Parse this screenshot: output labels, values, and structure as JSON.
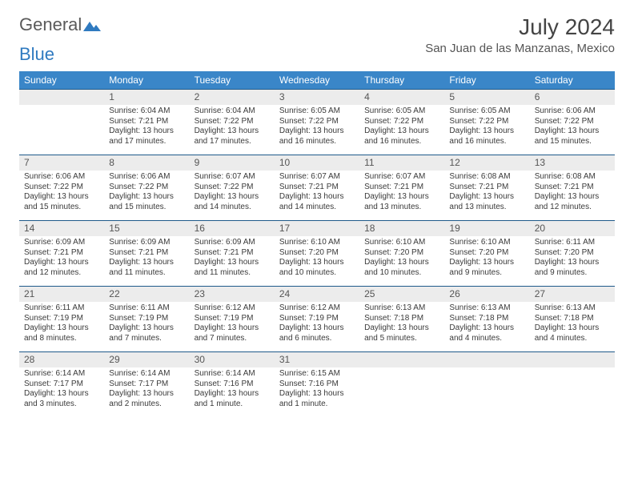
{
  "logo": {
    "text1": "General",
    "text2": "Blue"
  },
  "title": "July 2024",
  "location": "San Juan de las Manzanas, Mexico",
  "day_headers": [
    "Sunday",
    "Monday",
    "Tuesday",
    "Wednesday",
    "Thursday",
    "Friday",
    "Saturday"
  ],
  "colors": {
    "header_bg": "#3a86c8",
    "daynum_bg": "#ececec",
    "rule": "#1f5a8a",
    "logo_blue": "#2f7ac0"
  },
  "weeks": [
    [
      {
        "n": "",
        "sr": "",
        "ss": "",
        "dl": "",
        "empty": true
      },
      {
        "n": "1",
        "sr": "Sunrise: 6:04 AM",
        "ss": "Sunset: 7:21 PM",
        "dl": "Daylight: 13 hours and 17 minutes."
      },
      {
        "n": "2",
        "sr": "Sunrise: 6:04 AM",
        "ss": "Sunset: 7:22 PM",
        "dl": "Daylight: 13 hours and 17 minutes."
      },
      {
        "n": "3",
        "sr": "Sunrise: 6:05 AM",
        "ss": "Sunset: 7:22 PM",
        "dl": "Daylight: 13 hours and 16 minutes."
      },
      {
        "n": "4",
        "sr": "Sunrise: 6:05 AM",
        "ss": "Sunset: 7:22 PM",
        "dl": "Daylight: 13 hours and 16 minutes."
      },
      {
        "n": "5",
        "sr": "Sunrise: 6:05 AM",
        "ss": "Sunset: 7:22 PM",
        "dl": "Daylight: 13 hours and 16 minutes."
      },
      {
        "n": "6",
        "sr": "Sunrise: 6:06 AM",
        "ss": "Sunset: 7:22 PM",
        "dl": "Daylight: 13 hours and 15 minutes."
      }
    ],
    [
      {
        "n": "7",
        "sr": "Sunrise: 6:06 AM",
        "ss": "Sunset: 7:22 PM",
        "dl": "Daylight: 13 hours and 15 minutes."
      },
      {
        "n": "8",
        "sr": "Sunrise: 6:06 AM",
        "ss": "Sunset: 7:22 PM",
        "dl": "Daylight: 13 hours and 15 minutes."
      },
      {
        "n": "9",
        "sr": "Sunrise: 6:07 AM",
        "ss": "Sunset: 7:22 PM",
        "dl": "Daylight: 13 hours and 14 minutes."
      },
      {
        "n": "10",
        "sr": "Sunrise: 6:07 AM",
        "ss": "Sunset: 7:21 PM",
        "dl": "Daylight: 13 hours and 14 minutes."
      },
      {
        "n": "11",
        "sr": "Sunrise: 6:07 AM",
        "ss": "Sunset: 7:21 PM",
        "dl": "Daylight: 13 hours and 13 minutes."
      },
      {
        "n": "12",
        "sr": "Sunrise: 6:08 AM",
        "ss": "Sunset: 7:21 PM",
        "dl": "Daylight: 13 hours and 13 minutes."
      },
      {
        "n": "13",
        "sr": "Sunrise: 6:08 AM",
        "ss": "Sunset: 7:21 PM",
        "dl": "Daylight: 13 hours and 12 minutes."
      }
    ],
    [
      {
        "n": "14",
        "sr": "Sunrise: 6:09 AM",
        "ss": "Sunset: 7:21 PM",
        "dl": "Daylight: 13 hours and 12 minutes."
      },
      {
        "n": "15",
        "sr": "Sunrise: 6:09 AM",
        "ss": "Sunset: 7:21 PM",
        "dl": "Daylight: 13 hours and 11 minutes."
      },
      {
        "n": "16",
        "sr": "Sunrise: 6:09 AM",
        "ss": "Sunset: 7:21 PM",
        "dl": "Daylight: 13 hours and 11 minutes."
      },
      {
        "n": "17",
        "sr": "Sunrise: 6:10 AM",
        "ss": "Sunset: 7:20 PM",
        "dl": "Daylight: 13 hours and 10 minutes."
      },
      {
        "n": "18",
        "sr": "Sunrise: 6:10 AM",
        "ss": "Sunset: 7:20 PM",
        "dl": "Daylight: 13 hours and 10 minutes."
      },
      {
        "n": "19",
        "sr": "Sunrise: 6:10 AM",
        "ss": "Sunset: 7:20 PM",
        "dl": "Daylight: 13 hours and 9 minutes."
      },
      {
        "n": "20",
        "sr": "Sunrise: 6:11 AM",
        "ss": "Sunset: 7:20 PM",
        "dl": "Daylight: 13 hours and 9 minutes."
      }
    ],
    [
      {
        "n": "21",
        "sr": "Sunrise: 6:11 AM",
        "ss": "Sunset: 7:19 PM",
        "dl": "Daylight: 13 hours and 8 minutes."
      },
      {
        "n": "22",
        "sr": "Sunrise: 6:11 AM",
        "ss": "Sunset: 7:19 PM",
        "dl": "Daylight: 13 hours and 7 minutes."
      },
      {
        "n": "23",
        "sr": "Sunrise: 6:12 AM",
        "ss": "Sunset: 7:19 PM",
        "dl": "Daylight: 13 hours and 7 minutes."
      },
      {
        "n": "24",
        "sr": "Sunrise: 6:12 AM",
        "ss": "Sunset: 7:19 PM",
        "dl": "Daylight: 13 hours and 6 minutes."
      },
      {
        "n": "25",
        "sr": "Sunrise: 6:13 AM",
        "ss": "Sunset: 7:18 PM",
        "dl": "Daylight: 13 hours and 5 minutes."
      },
      {
        "n": "26",
        "sr": "Sunrise: 6:13 AM",
        "ss": "Sunset: 7:18 PM",
        "dl": "Daylight: 13 hours and 4 minutes."
      },
      {
        "n": "27",
        "sr": "Sunrise: 6:13 AM",
        "ss": "Sunset: 7:18 PM",
        "dl": "Daylight: 13 hours and 4 minutes."
      }
    ],
    [
      {
        "n": "28",
        "sr": "Sunrise: 6:14 AM",
        "ss": "Sunset: 7:17 PM",
        "dl": "Daylight: 13 hours and 3 minutes."
      },
      {
        "n": "29",
        "sr": "Sunrise: 6:14 AM",
        "ss": "Sunset: 7:17 PM",
        "dl": "Daylight: 13 hours and 2 minutes."
      },
      {
        "n": "30",
        "sr": "Sunrise: 6:14 AM",
        "ss": "Sunset: 7:16 PM",
        "dl": "Daylight: 13 hours and 1 minute."
      },
      {
        "n": "31",
        "sr": "Sunrise: 6:15 AM",
        "ss": "Sunset: 7:16 PM",
        "dl": "Daylight: 13 hours and 1 minute."
      },
      {
        "n": "",
        "sr": "",
        "ss": "",
        "dl": "",
        "empty": true
      },
      {
        "n": "",
        "sr": "",
        "ss": "",
        "dl": "",
        "empty": true
      },
      {
        "n": "",
        "sr": "",
        "ss": "",
        "dl": "",
        "empty": true
      }
    ]
  ]
}
